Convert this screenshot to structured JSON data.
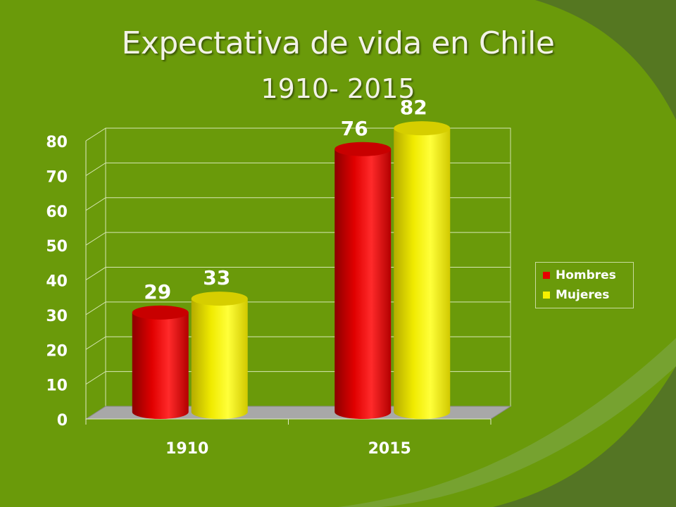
{
  "slide": {
    "title": "Expectativa de vida en Chile",
    "subtitle": "1910- 2015",
    "background_color": "#6a9a0a"
  },
  "chart_data": {
    "type": "bar",
    "style": "3d-cylinder",
    "categories": [
      "1910",
      "2015"
    ],
    "series": [
      {
        "name": "Hombres",
        "values": [
          29,
          76
        ],
        "color": "#e60000"
      },
      {
        "name": "Mujeres",
        "values": [
          33,
          82
        ],
        "color": "#f5f000"
      }
    ],
    "y_ticks": [
      "0",
      "10",
      "20",
      "30",
      "40",
      "50",
      "60",
      "70",
      "80"
    ],
    "ylim": [
      0,
      80
    ],
    "grid": true,
    "legend": "right"
  }
}
